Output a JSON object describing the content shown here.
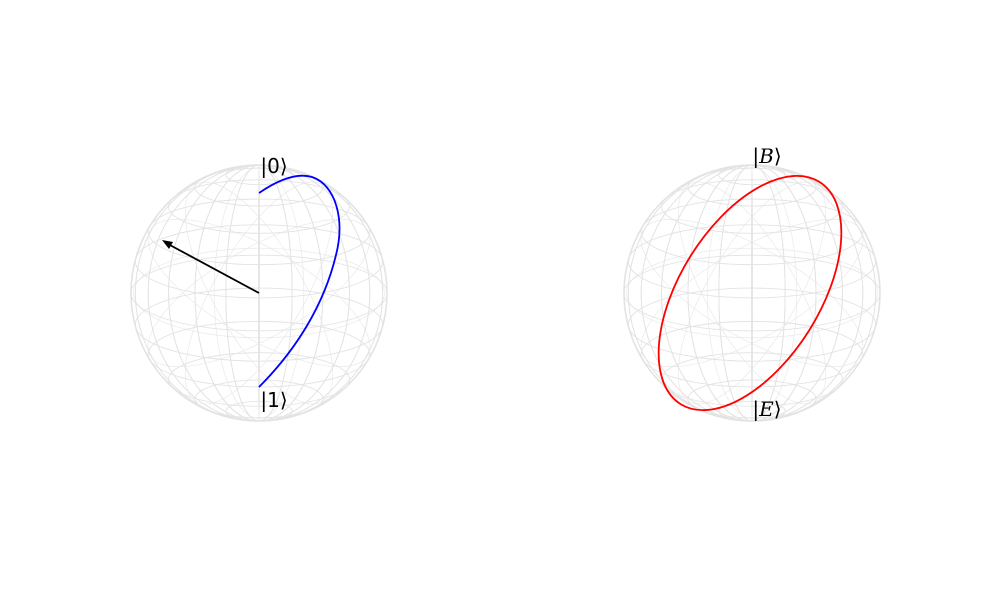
{
  "spheres": [
    {
      "id": "left",
      "top_label": "0",
      "top_label_italic": false,
      "bottom_label": "1",
      "bottom_label_italic": false,
      "curve_color": "#0000ff",
      "has_state_vector": true,
      "state_vector_color": "#000000"
    },
    {
      "id": "right",
      "top_label": "B",
      "top_label_italic": true,
      "bottom_label": "E",
      "bottom_label_italic": true,
      "curve_color": "#ff0000",
      "has_state_vector": false
    }
  ],
  "wireframe_color": "#e3e3e3"
}
